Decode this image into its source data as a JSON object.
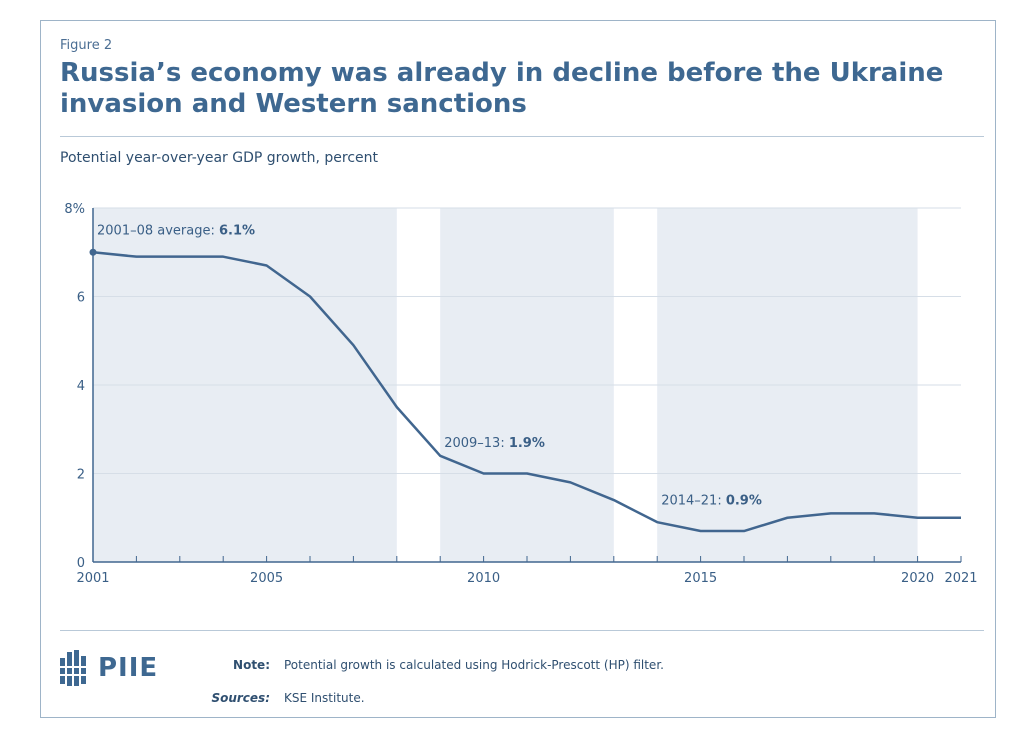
{
  "figure_label": "Figure 2",
  "title": "Russia’s economy was already in decline before the Ukraine invasion and Western sanctions",
  "subtitle": "Potential year-over-year GDP growth, percent",
  "colors": {
    "line": "#41668f",
    "shade": "#e8edf3",
    "text": "#3a5f86",
    "grid": "#d6dee7"
  },
  "chart_data": {
    "type": "line",
    "title": "",
    "xlabel": "",
    "ylabel": "Potential year-over-year GDP growth, percent",
    "xlim": [
      2001,
      2021
    ],
    "ylim": [
      0,
      8
    ],
    "grid": true,
    "y_ticks": [
      {
        "value": 0,
        "label": "0"
      },
      {
        "value": 2,
        "label": "2"
      },
      {
        "value": 4,
        "label": "4"
      },
      {
        "value": 6,
        "label": "6"
      },
      {
        "value": 8,
        "label": "8%"
      }
    ],
    "x_ticks": [
      {
        "value": 2001,
        "label": "2001"
      },
      {
        "value": 2005,
        "label": "2005"
      },
      {
        "value": 2010,
        "label": "2010"
      },
      {
        "value": 2015,
        "label": "2015"
      },
      {
        "value": 2020,
        "label": "2020"
      },
      {
        "value": 2021,
        "label": "2021"
      }
    ],
    "x": [
      2001,
      2002,
      2003,
      2004,
      2005,
      2006,
      2007,
      2008,
      2009,
      2010,
      2011,
      2012,
      2013,
      2014,
      2015,
      2016,
      2017,
      2018,
      2019,
      2020,
      2021
    ],
    "series": [
      {
        "values": [
          7.0,
          6.9,
          6.9,
          6.9,
          6.7,
          6.0,
          4.9,
          3.5,
          2.4,
          2.0,
          2.0,
          1.8,
          1.4,
          0.9,
          0.7,
          0.7,
          1.0,
          1.1,
          1.1,
          1.0,
          1.0
        ]
      }
    ],
    "shaded_periods": [
      {
        "start": 2001,
        "end": 2008
      },
      {
        "start": 2009,
        "end": 2013
      },
      {
        "start": 2014,
        "end": 2020
      }
    ],
    "annotations": [
      {
        "label": "2001–08 average: ",
        "value": "6.1%",
        "x": 2001,
        "y": 7.4
      },
      {
        "label": "2009–13: ",
        "value": "1.9%",
        "x": 2009,
        "y": 2.6
      },
      {
        "label": "2014–21: ",
        "value": "0.9%",
        "x": 2014,
        "y": 1.3
      }
    ]
  },
  "footer": {
    "logo_text": "PIIE",
    "note_label": "Note:",
    "note_text": "Potential growth is calculated using Hodrick-Prescott (HP) filter.",
    "sources_label": "Sources:",
    "sources_text": "KSE Institute."
  }
}
